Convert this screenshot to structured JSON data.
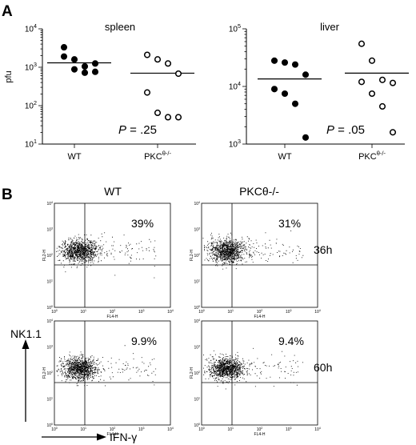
{
  "panel_labels": {
    "a": "A",
    "b": "B"
  },
  "chart_data": [
    {
      "type": "scatter",
      "panel": "A",
      "title": "spleen",
      "ylabel": "pfu",
      "yscale": "log",
      "ylim": [
        10,
        10000
      ],
      "ytick_labels": [
        {
          "base": "10",
          "exp": "1",
          "value": 10
        },
        {
          "base": "10",
          "exp": "2",
          "value": 100
        },
        {
          "base": "10",
          "exp": "3",
          "value": 1000
        },
        {
          "base": "10",
          "exp": "4",
          "value": 10000
        }
      ],
      "categories": [
        {
          "label": "WT",
          "sup": ""
        },
        {
          "label": "PKC",
          "sup": "θ-/-"
        }
      ],
      "pvalue": {
        "italic": "P",
        "text": " = .25"
      },
      "series": [
        {
          "marker": "filled",
          "category": 0,
          "mean": 1300,
          "values": [
            3300,
            1600,
            1050,
            1250,
            1900,
            880,
            720,
            760
          ]
        },
        {
          "marker": "open",
          "category": 1,
          "mean": 700,
          "values": [
            2100,
            1600,
            1250,
            680,
            220,
            65,
            50,
            50
          ]
        }
      ]
    },
    {
      "type": "scatter",
      "panel": "A",
      "title": "liver",
      "ylabel": "",
      "yscale": "log",
      "ylim": [
        1000,
        100000
      ],
      "ytick_labels": [
        {
          "base": "10",
          "exp": "3",
          "value": 1000
        },
        {
          "base": "10",
          "exp": "4",
          "value": 10000
        },
        {
          "base": "10",
          "exp": "5",
          "value": 100000
        }
      ],
      "categories": [
        {
          "label": "WT",
          "sup": ""
        },
        {
          "label": "PKC",
          "sup": "θ-/-"
        }
      ],
      "pvalue": {
        "italic": "P",
        "text": " = .05"
      },
      "series": [
        {
          "marker": "filled",
          "category": 0,
          "mean": 13500,
          "values": [
            28000,
            26000,
            24000,
            16000,
            9000,
            7500,
            5000,
            1300
          ]
        },
        {
          "marker": "open",
          "category": 1,
          "mean": 17000,
          "values": [
            55000,
            28000,
            13000,
            11500,
            12000,
            7500,
            4500,
            1600
          ]
        }
      ]
    }
  ],
  "flow": {
    "columns": [
      {
        "label": "WT"
      },
      {
        "label": "PKCθ-/-"
      }
    ],
    "rows": [
      {
        "label": "36h"
      },
      {
        "label": "60h"
      }
    ],
    "percentages": [
      [
        "39%",
        "31%"
      ],
      [
        "9.9%",
        "9.4%"
      ]
    ],
    "axis_small": {
      "x": "FL4-H",
      "y": "FL2-H"
    },
    "ytick_small": [
      {
        "base": "10",
        "exp": "0"
      },
      {
        "base": "10",
        "exp": "1"
      },
      {
        "base": "10",
        "exp": "2"
      },
      {
        "base": "10",
        "exp": "3"
      },
      {
        "base": "10",
        "exp": "4"
      }
    ],
    "xtick_small": [
      {
        "base": "10",
        "exp": "0"
      },
      {
        "base": "10",
        "exp": "1"
      },
      {
        "base": "10",
        "exp": "2"
      },
      {
        "base": "10",
        "exp": "3"
      },
      {
        "base": "10",
        "exp": "4"
      }
    ],
    "y_marker": "NK1.1",
    "x_marker": "IFN-γ"
  }
}
